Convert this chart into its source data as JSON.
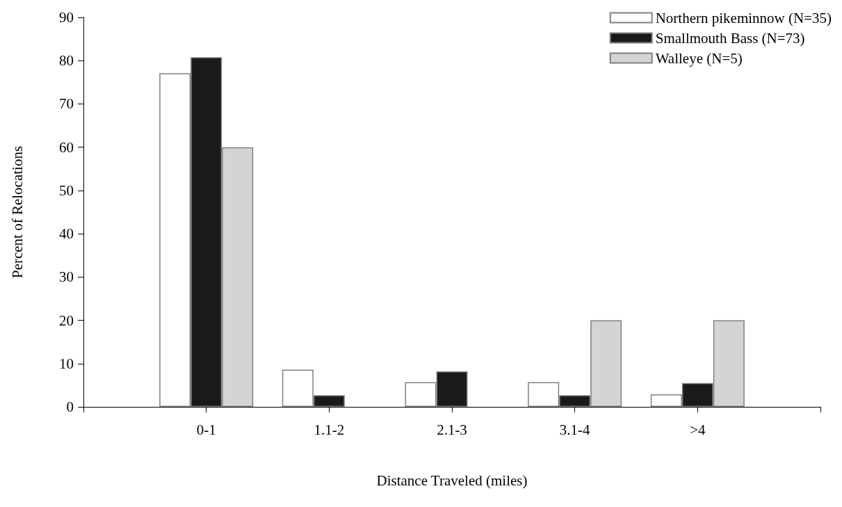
{
  "chart_data": {
    "type": "bar",
    "xlabel": "Distance Traveled (miles)",
    "ylabel": "Percent of Relocations",
    "categories": [
      null,
      "0-1",
      "1.1-2",
      "2.1-3",
      "3.1-4",
      ">4",
      null
    ],
    "series": [
      {
        "name": "Northern pikeminnow (N=35)",
        "color": "#ffffff",
        "values": [
          null,
          77.1,
          8.6,
          5.7,
          5.7,
          2.9,
          null
        ]
      },
      {
        "name": "Smallmouth Bass (N=73)",
        "color": "#1a1a1a",
        "values": [
          null,
          80.8,
          2.7,
          8.2,
          2.7,
          5.5,
          null
        ]
      },
      {
        "name": "Walleye (N=5)",
        "color": "#d4d4d4",
        "values": [
          null,
          60,
          0,
          0,
          20,
          20,
          null
        ]
      }
    ],
    "ylim": [
      0,
      90
    ],
    "yticks": [
      0,
      10,
      20,
      30,
      40,
      50,
      60,
      70,
      80,
      90
    ],
    "grid": false,
    "legend": "top right"
  }
}
